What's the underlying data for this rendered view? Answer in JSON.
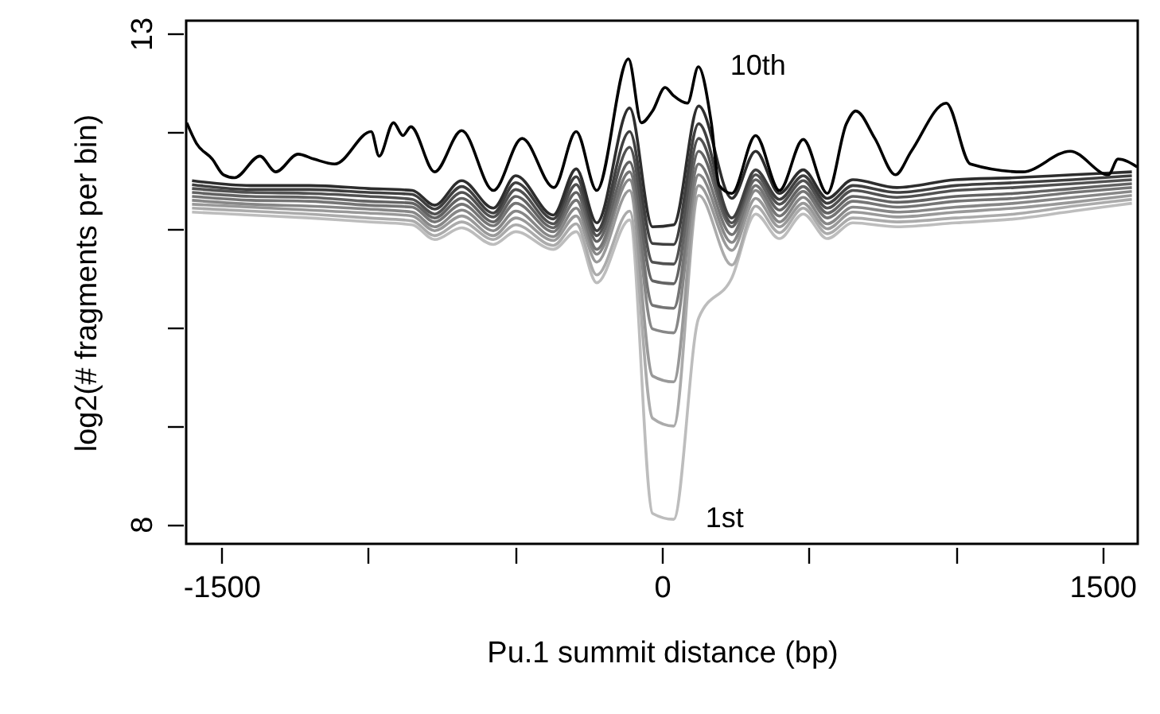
{
  "chart_data": {
    "type": "line",
    "xlabel": "Pu.1 summit distance (bp)",
    "ylabel": "log2(# fragments per bin)",
    "xlim": [
      -1620,
      1620
    ],
    "ylim": [
      7.8,
      13.13
    ],
    "xticks": [
      -1500,
      {
        "value": -1000,
        "label": null
      },
      {
        "value": -500,
        "label": null
      },
      0,
      {
        "value": 500,
        "label": null
      },
      {
        "value": 1000,
        "label": null
      },
      1500
    ],
    "yticks": [
      8,
      {
        "value": 9,
        "label": null
      },
      {
        "value": 10,
        "label": null
      },
      {
        "value": 11,
        "label": null
      },
      {
        "value": 12,
        "label": null
      },
      13
    ],
    "grid": false,
    "line_style": "solid",
    "marker": "none",
    "x": [
      -1600,
      -1400,
      -1200,
      -1000,
      -850,
      -774,
      -682,
      -574,
      -498,
      -370,
      -292,
      -222,
      -110,
      -32,
      40,
      125,
      238,
      319,
      400,
      481,
      563,
      650,
      800,
      1000,
      1200,
      1400,
      1600
    ],
    "series": [
      {
        "name": "1st",
        "color": "#bdbdbd",
        "values": [
          11.18,
          11.15,
          11.12,
          11.08,
          11.05,
          10.9,
          11.02,
          10.85,
          10.98,
          10.8,
          10.98,
          10.46,
          11.1,
          8.11,
          8.05,
          10.1,
          10.51,
          11.16,
          10.91,
          11.16,
          10.91,
          11.07,
          11.03,
          11.07,
          11.11,
          11.19,
          11.27
        ]
      },
      {
        "color": "#ababab",
        "values": [
          11.22,
          11.19,
          11.16,
          11.12,
          11.09,
          10.94,
          11.08,
          10.9,
          11.05,
          10.84,
          11.06,
          10.54,
          11.19,
          9.08,
          9.0,
          11.35,
          10.64,
          11.24,
          10.97,
          11.22,
          10.96,
          11.12,
          11.08,
          11.12,
          11.16,
          11.24,
          11.31
        ]
      },
      {
        "color": "#999999",
        "values": [
          11.26,
          11.23,
          11.2,
          11.17,
          11.14,
          10.99,
          11.14,
          10.94,
          11.12,
          10.89,
          11.14,
          10.67,
          11.4,
          9.51,
          9.45,
          11.45,
          10.79,
          11.32,
          11.03,
          11.27,
          11.01,
          11.18,
          11.13,
          11.18,
          11.22,
          11.28,
          11.35
        ]
      },
      {
        "color": "#878787",
        "values": [
          11.3,
          11.26,
          11.24,
          11.21,
          11.18,
          11.03,
          11.2,
          10.99,
          11.19,
          10.93,
          11.22,
          10.75,
          11.51,
          9.99,
          9.95,
          11.56,
          10.87,
          11.4,
          11.08,
          11.33,
          11.06,
          11.23,
          11.18,
          11.23,
          11.27,
          11.33,
          11.39
        ]
      },
      {
        "color": "#757575",
        "values": [
          11.34,
          11.3,
          11.29,
          11.25,
          11.23,
          11.08,
          11.26,
          11.04,
          11.27,
          10.98,
          11.3,
          10.8,
          11.59,
          10.23,
          10.2,
          11.67,
          10.95,
          11.45,
          11.14,
          11.39,
          11.12,
          11.29,
          11.23,
          11.29,
          11.32,
          11.38,
          11.43
        ]
      },
      {
        "color": "#636363",
        "values": [
          11.38,
          11.34,
          11.33,
          11.29,
          11.27,
          11.12,
          11.32,
          11.08,
          11.34,
          11.02,
          11.38,
          10.88,
          11.69,
          10.48,
          10.45,
          11.8,
          11.03,
          11.51,
          11.2,
          11.44,
          11.17,
          11.34,
          11.28,
          11.34,
          11.37,
          11.42,
          11.47
        ]
      },
      {
        "color": "#515151",
        "values": [
          11.42,
          11.38,
          11.37,
          11.34,
          11.31,
          11.16,
          11.38,
          11.13,
          11.41,
          11.06,
          11.46,
          10.94,
          11.84,
          10.67,
          10.65,
          11.93,
          11.07,
          11.56,
          11.26,
          11.5,
          11.22,
          11.4,
          11.33,
          11.4,
          11.43,
          11.47,
          11.51
        ]
      },
      {
        "color": "#3f3f3f",
        "values": [
          11.46,
          11.41,
          11.41,
          11.38,
          11.36,
          11.21,
          11.44,
          11.17,
          11.48,
          11.11,
          11.54,
          10.99,
          12.0,
          10.86,
          10.85,
          12.08,
          11.12,
          11.61,
          11.31,
          11.55,
          11.27,
          11.45,
          11.38,
          11.45,
          11.48,
          11.51,
          11.55
        ]
      },
      {
        "color": "#2d2d2d",
        "values": [
          11.5,
          11.45,
          11.45,
          11.42,
          11.4,
          11.25,
          11.5,
          11.22,
          11.55,
          11.15,
          11.62,
          11.07,
          12.24,
          11.03,
          11.05,
          12.26,
          11.32,
          11.8,
          11.37,
          11.61,
          11.32,
          11.51,
          11.43,
          11.51,
          11.53,
          11.56,
          11.59
        ]
      },
      {
        "name": "10th",
        "color": "#000000",
        "x": [
          -1618,
          -1585,
          -1531,
          -1493,
          -1455,
          -1369,
          -1315,
          -1239,
          -1185,
          -1114,
          -990,
          -963,
          -914,
          -882,
          -855,
          -774,
          -682,
          -574,
          -476,
          -368,
          -292,
          -222,
          -114,
          -70,
          -32,
          11,
          38,
          87,
          124,
          168,
          195,
          238,
          319,
          400,
          481,
          563,
          628,
          660,
          725,
          795,
          849,
          968,
          1050,
          1228,
          1390,
          1520,
          1553,
          1618
        ],
        "values": [
          12.09,
          11.88,
          11.72,
          11.56,
          11.53,
          11.75,
          11.59,
          11.77,
          11.72,
          11.67,
          12.0,
          11.75,
          12.09,
          11.96,
          12.05,
          11.59,
          12.01,
          11.4,
          11.93,
          11.43,
          12.0,
          11.4,
          12.74,
          12.09,
          12.21,
          12.45,
          12.37,
          12.29,
          12.66,
          12.09,
          11.45,
          11.37,
          11.96,
          11.4,
          11.92,
          11.37,
          12.08,
          12.21,
          11.93,
          11.56,
          11.8,
          12.29,
          11.67,
          11.59,
          11.8,
          11.56,
          11.72,
          11.64
        ]
      }
    ]
  }
}
